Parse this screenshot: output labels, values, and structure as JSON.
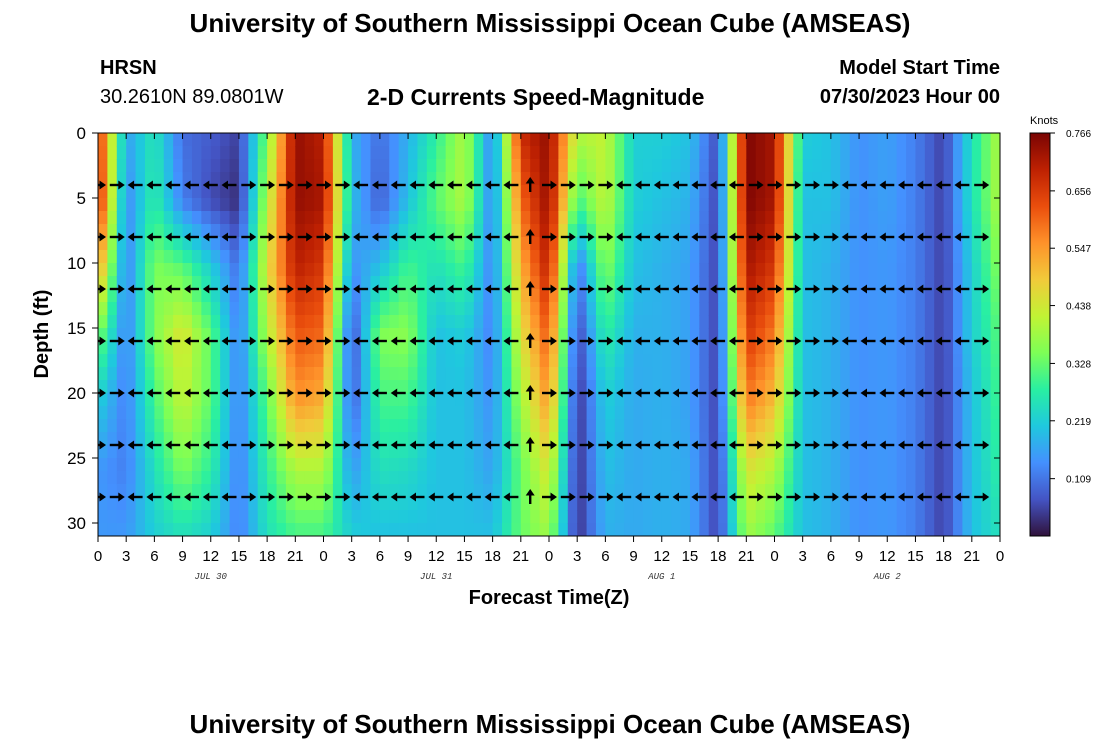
{
  "header": {
    "title": "University of Southern Mississippi Ocean Cube (AMSEAS)",
    "station": "HRSN",
    "coordinates": "30.2610N  89.0801W",
    "chart_label": "2-D Currents Speed-Magnitude",
    "start_label": "Model Start Time",
    "start_value": "07/30/2023 Hour 00"
  },
  "footer": {
    "title": "University of Southern Mississippi Ocean Cube (AMSEAS)"
  },
  "colors": {
    "palette": [
      "#30123b",
      "#4454c4",
      "#4490fe",
      "#1fc8de",
      "#29efa2",
      "#7dff56",
      "#c1f334",
      "#f1ca3a",
      "#fe922a",
      "#ea4e0d",
      "#be2102",
      "#7a0403"
    ]
  },
  "chart_data": {
    "type": "heatmap",
    "title": "2-D Currents Speed-Magnitude",
    "xlabel": "Forecast Time(Z)",
    "ylabel": "Depth (ft)",
    "x_range": [
      0,
      96
    ],
    "y_range": [
      0,
      31
    ],
    "x_ticks": [
      {
        "hour": 0,
        "label": "0"
      },
      {
        "hour": 3,
        "label": "3"
      },
      {
        "hour": 6,
        "label": "6"
      },
      {
        "hour": 9,
        "label": "9"
      },
      {
        "hour": 12,
        "label": "12"
      },
      {
        "hour": 15,
        "label": "15"
      },
      {
        "hour": 18,
        "label": "18"
      },
      {
        "hour": 21,
        "label": "21"
      },
      {
        "hour": 24,
        "label": "0"
      },
      {
        "hour": 27,
        "label": "3"
      },
      {
        "hour": 30,
        "label": "6"
      },
      {
        "hour": 33,
        "label": "9"
      },
      {
        "hour": 36,
        "label": "12"
      },
      {
        "hour": 39,
        "label": "15"
      },
      {
        "hour": 42,
        "label": "18"
      },
      {
        "hour": 45,
        "label": "21"
      },
      {
        "hour": 48,
        "label": "0"
      },
      {
        "hour": 51,
        "label": "3"
      },
      {
        "hour": 54,
        "label": "6"
      },
      {
        "hour": 57,
        "label": "9"
      },
      {
        "hour": 60,
        "label": "12"
      },
      {
        "hour": 63,
        "label": "15"
      },
      {
        "hour": 66,
        "label": "18"
      },
      {
        "hour": 69,
        "label": "21"
      },
      {
        "hour": 72,
        "label": "0"
      },
      {
        "hour": 75,
        "label": "3"
      },
      {
        "hour": 78,
        "label": "6"
      },
      {
        "hour": 81,
        "label": "9"
      },
      {
        "hour": 84,
        "label": "12"
      },
      {
        "hour": 87,
        "label": "15"
      },
      {
        "hour": 90,
        "label": "18"
      },
      {
        "hour": 93,
        "label": "21"
      },
      {
        "hour": 96,
        "label": "0"
      }
    ],
    "date_labels": [
      {
        "hour": 12,
        "label": "JUL 30"
      },
      {
        "hour": 36,
        "label": "JUL 31"
      },
      {
        "hour": 60,
        "label": "AUG 1"
      },
      {
        "hour": 84,
        "label": "AUG 2"
      }
    ],
    "y_ticks": [
      0,
      5,
      10,
      15,
      20,
      25,
      30
    ],
    "colorbar": {
      "unit": "Knots",
      "min": 0,
      "max": 0.766,
      "ticks": [
        0.766,
        0.656,
        0.547,
        0.438,
        0.328,
        0.219,
        0.109
      ]
    },
    "profile_hours": [
      0,
      3,
      6,
      9,
      12,
      15,
      18,
      21,
      24,
      27,
      30,
      33,
      36,
      39,
      42,
      45,
      48,
      51,
      54,
      57,
      60,
      63,
      66,
      69,
      72,
      75,
      78,
      81,
      84,
      87,
      90,
      93,
      96
    ],
    "speed_profiles": [
      [
        0.68,
        0.7,
        0.55,
        0.35,
        0.22,
        0.15,
        0.15
      ],
      [
        0.16,
        0.13,
        0.12,
        0.12,
        0.12,
        0.12,
        0.15
      ],
      [
        0.26,
        0.28,
        0.35,
        0.35,
        0.3,
        0.25,
        0.22
      ],
      [
        0.1,
        0.12,
        0.32,
        0.45,
        0.42,
        0.35,
        0.25
      ],
      [
        0.08,
        0.06,
        0.22,
        0.32,
        0.32,
        0.28,
        0.22
      ],
      [
        0.05,
        0.03,
        0.1,
        0.12,
        0.12,
        0.12,
        0.12
      ],
      [
        0.35,
        0.4,
        0.45,
        0.4,
        0.32,
        0.28,
        0.25
      ],
      [
        0.74,
        0.74,
        0.7,
        0.62,
        0.55,
        0.4,
        0.3
      ],
      [
        0.7,
        0.72,
        0.66,
        0.6,
        0.52,
        0.4,
        0.3
      ],
      [
        0.18,
        0.2,
        0.14,
        0.06,
        0.08,
        0.15,
        0.22
      ],
      [
        0.1,
        0.08,
        0.2,
        0.35,
        0.3,
        0.25,
        0.2
      ],
      [
        0.18,
        0.2,
        0.3,
        0.36,
        0.3,
        0.24,
        0.2
      ],
      [
        0.28,
        0.32,
        0.25,
        0.2,
        0.2,
        0.2,
        0.2
      ],
      [
        0.4,
        0.4,
        0.3,
        0.22,
        0.2,
        0.2,
        0.2
      ],
      [
        0.12,
        0.12,
        0.12,
        0.12,
        0.14,
        0.16,
        0.2
      ],
      [
        0.68,
        0.6,
        0.52,
        0.45,
        0.38,
        0.33,
        0.33
      ],
      [
        0.74,
        0.74,
        0.7,
        0.62,
        0.55,
        0.45,
        0.38
      ],
      [
        0.4,
        0.3,
        0.1,
        0.05,
        0.03,
        0.03,
        0.03
      ],
      [
        0.42,
        0.42,
        0.36,
        0.28,
        0.22,
        0.2,
        0.18
      ],
      [
        0.22,
        0.22,
        0.2,
        0.18,
        0.17,
        0.17,
        0.17
      ],
      [
        0.22,
        0.2,
        0.18,
        0.18,
        0.18,
        0.18,
        0.18
      ],
      [
        0.2,
        0.18,
        0.16,
        0.16,
        0.16,
        0.17,
        0.17
      ],
      [
        0.06,
        0.05,
        0.05,
        0.05,
        0.05,
        0.05,
        0.05
      ],
      [
        0.76,
        0.76,
        0.72,
        0.66,
        0.58,
        0.45,
        0.38
      ],
      [
        0.72,
        0.72,
        0.66,
        0.58,
        0.5,
        0.4,
        0.32
      ],
      [
        0.22,
        0.2,
        0.2,
        0.2,
        0.2,
        0.2,
        0.2
      ],
      [
        0.2,
        0.2,
        0.18,
        0.18,
        0.18,
        0.18,
        0.18
      ],
      [
        0.14,
        0.14,
        0.14,
        0.14,
        0.14,
        0.14,
        0.14
      ],
      [
        0.16,
        0.16,
        0.15,
        0.15,
        0.15,
        0.15,
        0.15
      ],
      [
        0.12,
        0.12,
        0.12,
        0.12,
        0.12,
        0.12,
        0.12
      ],
      [
        0.05,
        0.05,
        0.05,
        0.05,
        0.05,
        0.05,
        0.05
      ],
      [
        0.25,
        0.25,
        0.22,
        0.22,
        0.2,
        0.2,
        0.2
      ],
      [
        0.4,
        0.4,
        0.36,
        0.32,
        0.3,
        0.28,
        0.25
      ]
    ],
    "vector_depths": [
      4,
      8,
      12,
      16,
      20,
      24,
      28
    ],
    "vector_hours": [
      0,
      2,
      4,
      6,
      8,
      10,
      12,
      14,
      16,
      18,
      20,
      22,
      24,
      26,
      28,
      30,
      32,
      34,
      36,
      38,
      40,
      42,
      44,
      46,
      48,
      50,
      52,
      54,
      56,
      58,
      60,
      62,
      64,
      66,
      68,
      70,
      72,
      74,
      76,
      78,
      80,
      82,
      84,
      86,
      88,
      90,
      92,
      94
    ],
    "vector_directions": [
      "right",
      "right",
      "left",
      "left",
      "left",
      "left",
      "left",
      "left",
      "right",
      "right",
      "right",
      "right",
      "right",
      "right",
      "left",
      "left",
      "left",
      "left",
      "left",
      "left",
      "left",
      "left",
      "left",
      "up",
      "right",
      "right",
      "right",
      "right",
      "left",
      "left",
      "left",
      "left",
      "left",
      "left",
      "left",
      "right",
      "right",
      "right",
      "right",
      "right",
      "left",
      "left",
      "left",
      "left",
      "left",
      "left",
      "left",
      "right"
    ]
  }
}
